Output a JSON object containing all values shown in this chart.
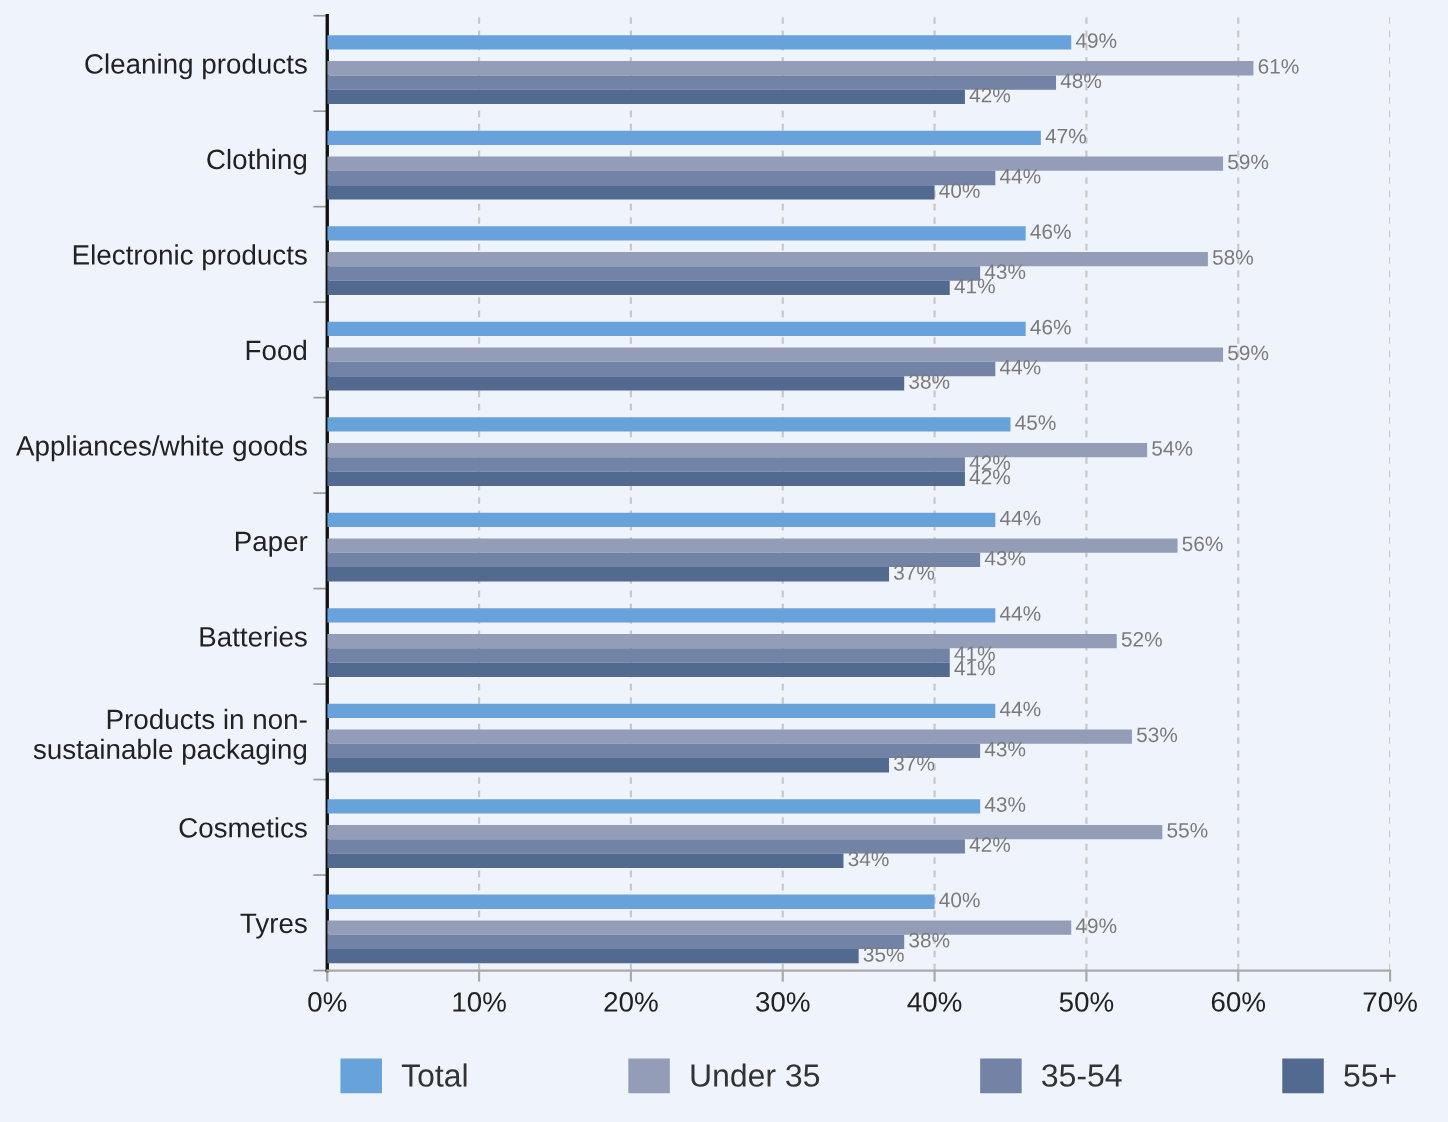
{
  "chart_data": {
    "type": "bar",
    "orientation": "horizontal",
    "categories": [
      "Cleaning products",
      "Clothing",
      "Electronic products",
      "Food",
      "Appliances/white goods",
      "Paper",
      "Batteries",
      "Products in non-\nsustainable packaging",
      "Cosmetics",
      "Tyres"
    ],
    "series": [
      {
        "name": "Total",
        "color": "#67a3da",
        "values": [
          49,
          47,
          46,
          46,
          45,
          44,
          44,
          44,
          43,
          40
        ],
        "value_labels": [
          "49%",
          "47%",
          "46%",
          "46%",
          "45%",
          "44%",
          "44%",
          "44%",
          "43%",
          "40%"
        ]
      },
      {
        "name": "Under 35",
        "color": "#939db8",
        "values": [
          61,
          59,
          58,
          59,
          54,
          56,
          52,
          53,
          55,
          49
        ],
        "value_labels": [
          "61%",
          "59%",
          "58%",
          "59%",
          "54%",
          "56%",
          "52%",
          "53%",
          "55%",
          "49%"
        ]
      },
      {
        "name": "35-54",
        "color": "#7283a6",
        "values": [
          48,
          44,
          43,
          44,
          42,
          43,
          41,
          43,
          42,
          38
        ],
        "value_labels": [
          "48%",
          "44%",
          "43%",
          "44%",
          "42%",
          "43%",
          "41%",
          "43%",
          "42%",
          "38%"
        ]
      },
      {
        "name": "55+",
        "color": "#536a90",
        "values": [
          42,
          40,
          41,
          38,
          42,
          37,
          41,
          37,
          34,
          35
        ],
        "value_labels": [
          "42%",
          "40%",
          "41%",
          "38%",
          "42%",
          "37%",
          "41%",
          "37%",
          "34%",
          "35%"
        ]
      }
    ],
    "xlim": [
      0,
      70
    ],
    "xticks": [
      {
        "value": 0,
        "label": "0%"
      },
      {
        "value": 10,
        "label": "10%"
      },
      {
        "value": 20,
        "label": "20%"
      },
      {
        "value": 30,
        "label": "30%"
      },
      {
        "value": 40,
        "label": "40%"
      },
      {
        "value": 50,
        "label": "50%"
      },
      {
        "value": 60,
        "label": "60%"
      },
      {
        "value": 70,
        "label": "70%"
      }
    ],
    "grid": "x",
    "legend": "bottom"
  }
}
